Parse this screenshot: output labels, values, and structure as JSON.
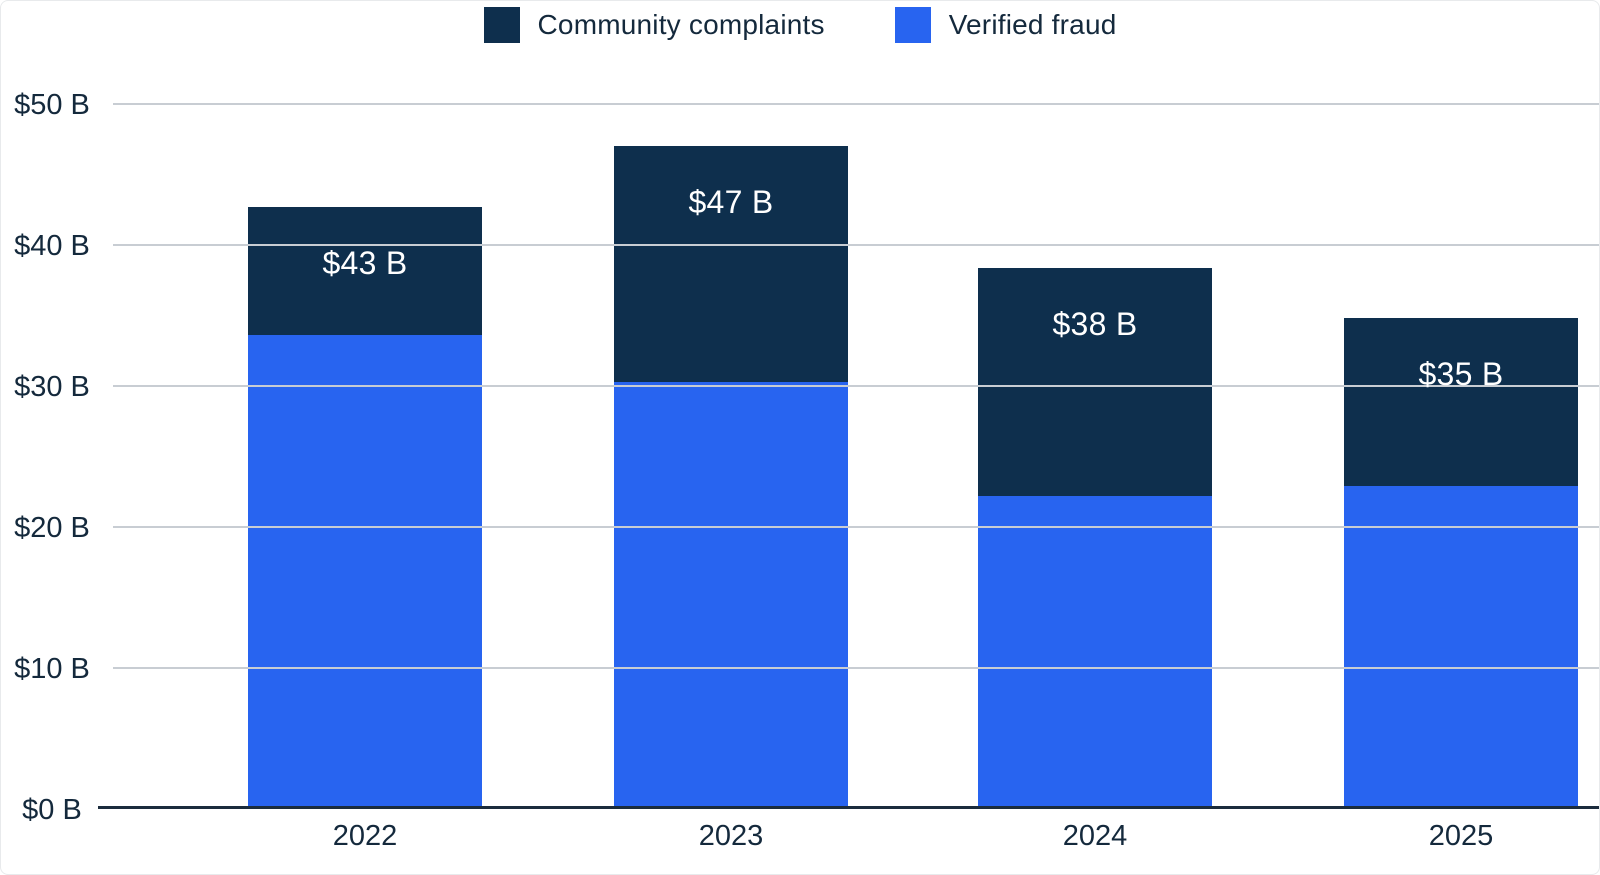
{
  "chart_data": {
    "type": "bar",
    "stacked": true,
    "title": "",
    "categories": [
      "2022",
      "2023",
      "2024",
      "2025"
    ],
    "series": [
      {
        "name": "Verified fraud",
        "color": "#2864f0",
        "values": [
          33.6,
          30.3,
          22.2,
          22.9
        ]
      },
      {
        "name": "Community complaints",
        "color": "#0e2f4d",
        "values": [
          9.1,
          16.7,
          16.2,
          11.9
        ]
      }
    ],
    "totals": [
      42.7,
      47.0,
      38.4,
      34.8
    ],
    "bar_labels": [
      "$43 B",
      "$47 B",
      "$38 B",
      "$35 B"
    ],
    "y_axis": {
      "max": 50,
      "ticks": [
        0,
        10,
        20,
        30,
        40,
        50
      ],
      "tick_labels": [
        "$0 B",
        "$10 B",
        "$20 B",
        "$30 B",
        "$40 B",
        "$50 B"
      ]
    },
    "x_axis": {
      "labels": [
        "2022",
        "2023",
        "2024",
        "2025"
      ]
    },
    "legend": [
      {
        "label": "Community complaints",
        "color": "#0e2f4d"
      },
      {
        "label": "Verified fraud",
        "color": "#2864f0"
      }
    ],
    "legend_position": "top",
    "grid": true,
    "colors": {
      "background": "#ffffff",
      "gridline": "#c8cdd3",
      "axis_line": "#1b2c3d",
      "axis_text": "#14293c",
      "bar_label_text": "#ffffff",
      "card_border": "#e8eaec"
    }
  }
}
